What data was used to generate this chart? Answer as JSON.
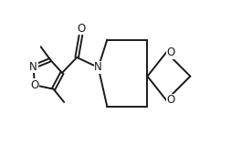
{
  "bg_color": "#ffffff",
  "line_color": "#1a1a1a",
  "line_width": 1.4,
  "font_size": 8.5,
  "figsize": [
    2.76,
    1.59
  ],
  "dpi": 100,
  "xlim": [
    0.0,
    10.0
  ],
  "ylim": [
    0.5,
    6.0
  ]
}
